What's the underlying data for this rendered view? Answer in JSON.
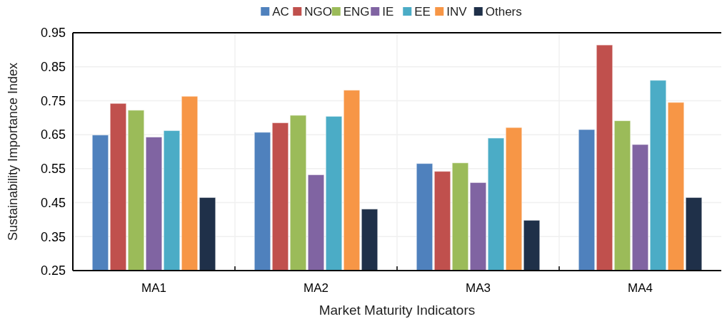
{
  "chart_data": {
    "type": "bar",
    "xlabel": "Market Maturity Indicators",
    "ylabel": "Sustainability Importance Index",
    "categories": [
      "MA1",
      "MA2",
      "MA3",
      "MA4"
    ],
    "series": [
      {
        "name": "AC",
        "color": "#4f81bd",
        "values": [
          0.649,
          0.657,
          0.565,
          0.665
        ]
      },
      {
        "name": "NGO",
        "color": "#c0504d",
        "values": [
          0.742,
          0.685,
          0.542,
          0.914
        ]
      },
      {
        "name": "ENG",
        "color": "#9bbb59",
        "values": [
          0.722,
          0.707,
          0.567,
          0.691
        ]
      },
      {
        "name": "IE",
        "color": "#8064a2",
        "values": [
          0.643,
          0.532,
          0.509,
          0.621
        ]
      },
      {
        "name": "EE",
        "color": "#4bacc6",
        "values": [
          0.662,
          0.704,
          0.64,
          0.81
        ]
      },
      {
        "name": "INV",
        "color": "#f79646",
        "values": [
          0.763,
          0.781,
          0.671,
          0.745
        ]
      },
      {
        "name": "Others",
        "color": "#1f3049",
        "values": [
          0.465,
          0.431,
          0.398,
          0.465
        ]
      }
    ],
    "ylim": [
      0.25,
      0.95
    ],
    "yticks": [
      {
        "value": 0.25,
        "label": "0.25"
      },
      0.35,
      0.45,
      0.55,
      0.65,
      0.75,
      0.85,
      0.95
    ],
    "grid": true,
    "legend": "top"
  }
}
